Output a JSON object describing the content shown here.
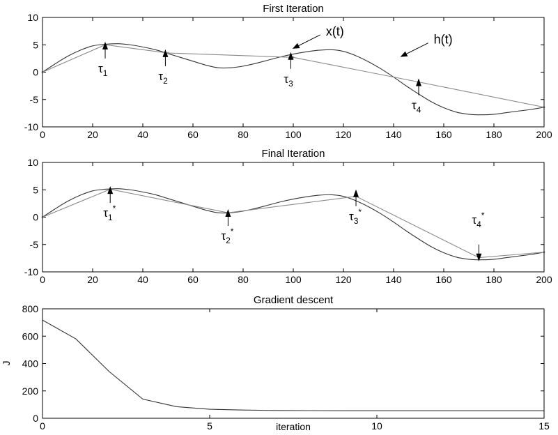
{
  "colors": {
    "x_curve": "#333333",
    "h_curve": "#8a8a8a",
    "axes": "#000000",
    "arrow": "#000000"
  },
  "chart_data": [
    {
      "type": "line",
      "title": "First Iteration",
      "xlim": [
        0,
        200
      ],
      "ylim": [
        -10,
        10
      ],
      "xticks": [
        "0",
        "20",
        "40",
        "60",
        "80",
        "100",
        "120",
        "140",
        "160",
        "180",
        "200"
      ],
      "yticks": [
        "10",
        "5",
        "0",
        "-5",
        "-10"
      ],
      "grid": false,
      "series": [
        {
          "name": "x(t)",
          "kind": "smooth",
          "x": [
            0,
            5,
            10,
            15,
            20,
            25,
            30,
            35,
            40,
            45,
            50,
            55,
            60,
            65,
            70,
            75,
            80,
            85,
            90,
            95,
            100,
            105,
            110,
            115,
            120,
            125,
            130,
            135,
            140,
            145,
            150,
            155,
            160,
            165,
            170,
            175,
            180,
            185,
            190,
            195,
            200
          ],
          "y": [
            0,
            1.5,
            2.9,
            4.0,
            4.8,
            5.1,
            5.2,
            5.0,
            4.6,
            4.1,
            3.4,
            2.7,
            2.0,
            1.3,
            0.8,
            0.8,
            1.1,
            1.6,
            2.2,
            2.8,
            3.3,
            3.7,
            4.0,
            4.1,
            3.8,
            3.0,
            1.9,
            0.6,
            -0.9,
            -2.5,
            -4.0,
            -5.4,
            -6.5,
            -7.3,
            -7.7,
            -7.8,
            -7.7,
            -7.4,
            -7.1,
            -6.8,
            -6.4
          ]
        },
        {
          "name": "h(t)",
          "kind": "polyline",
          "x": [
            0,
            25,
            50,
            100,
            150,
            200
          ],
          "y": [
            0,
            5.0,
            3.5,
            2.7,
            -1.8,
            -6.4
          ]
        }
      ],
      "annotations": [
        {
          "label": "x(t)",
          "x": 113,
          "y": 6.7
        },
        {
          "label": "h(t)",
          "x": 156,
          "y": 5.2
        }
      ],
      "markers": [
        {
          "sym": "τ",
          "sub": "1",
          "sup": "",
          "x": 25,
          "y": 2.5,
          "dir": "up"
        },
        {
          "sym": "τ",
          "sub": "2",
          "sup": "",
          "x": 49,
          "y": 1.1,
          "dir": "up"
        },
        {
          "sym": "τ",
          "sub": "3",
          "sup": "",
          "x": 99,
          "y": 0.6,
          "dir": "up"
        },
        {
          "sym": "τ",
          "sub": "4",
          "sup": "",
          "x": 150,
          "y": -4.2,
          "dir": "up"
        }
      ]
    },
    {
      "type": "line",
      "title": "Final Iteration",
      "xlim": [
        0,
        200
      ],
      "ylim": [
        -10,
        10
      ],
      "xticks": [
        "0",
        "20",
        "40",
        "60",
        "80",
        "100",
        "120",
        "140",
        "160",
        "180",
        "200"
      ],
      "yticks": [
        "10",
        "5",
        "0",
        "-5",
        "-10"
      ],
      "grid": false,
      "series": [
        {
          "name": "x(t)",
          "kind": "smooth",
          "x": [
            0,
            5,
            10,
            15,
            20,
            25,
            30,
            35,
            40,
            45,
            50,
            55,
            60,
            65,
            70,
            75,
            80,
            85,
            90,
            95,
            100,
            105,
            110,
            115,
            120,
            125,
            130,
            135,
            140,
            145,
            150,
            155,
            160,
            165,
            170,
            175,
            180,
            185,
            190,
            195,
            200
          ],
          "y": [
            0,
            1.5,
            2.9,
            4.0,
            4.8,
            5.1,
            5.2,
            5.0,
            4.6,
            4.1,
            3.4,
            2.7,
            2.0,
            1.3,
            0.8,
            0.8,
            1.1,
            1.6,
            2.2,
            2.8,
            3.3,
            3.7,
            4.0,
            4.1,
            3.8,
            3.0,
            1.9,
            0.6,
            -0.9,
            -2.5,
            -4.0,
            -5.4,
            -6.5,
            -7.3,
            -7.7,
            -7.8,
            -7.7,
            -7.4,
            -7.1,
            -6.8,
            -6.4
          ]
        },
        {
          "name": "h(t)",
          "kind": "polyline",
          "x": [
            0,
            27,
            74,
            125,
            174,
            200
          ],
          "y": [
            0,
            5.1,
            0.8,
            3.8,
            -7.4,
            -6.4
          ]
        }
      ],
      "annotations": [],
      "markers": [
        {
          "sym": "τ",
          "sub": "1",
          "sup": "*",
          "x": 27,
          "y": 2.6,
          "dir": "up"
        },
        {
          "sym": "τ",
          "sub": "2",
          "sup": "*",
          "x": 74,
          "y": -1.6,
          "dir": "up"
        },
        {
          "sym": "τ",
          "sub": "3",
          "sup": "*",
          "x": 125,
          "y": 2.0,
          "dir": "up"
        },
        {
          "sym": "τ",
          "sub": "4",
          "sup": "*",
          "x": 174,
          "y": -5.0,
          "dir": "down"
        }
      ]
    },
    {
      "type": "line",
      "title": "Gradient descent",
      "xlabel": "iteration",
      "ylabel": "J",
      "xlim": [
        0,
        15
      ],
      "ylim": [
        0,
        800
      ],
      "xticks": [
        "0",
        "5",
        "10",
        "15"
      ],
      "yticks": [
        "800",
        "600",
        "400",
        "200",
        "0"
      ],
      "grid": false,
      "series": [
        {
          "kind": "polyline",
          "x": [
            0,
            1,
            2,
            3,
            4,
            5,
            6,
            7,
            8,
            9,
            10,
            11,
            12,
            13,
            14,
            15
          ],
          "y": [
            718,
            580,
            340,
            140,
            85,
            66,
            60,
            57,
            56,
            55,
            55,
            55,
            55,
            55,
            55,
            55
          ]
        }
      ]
    }
  ]
}
